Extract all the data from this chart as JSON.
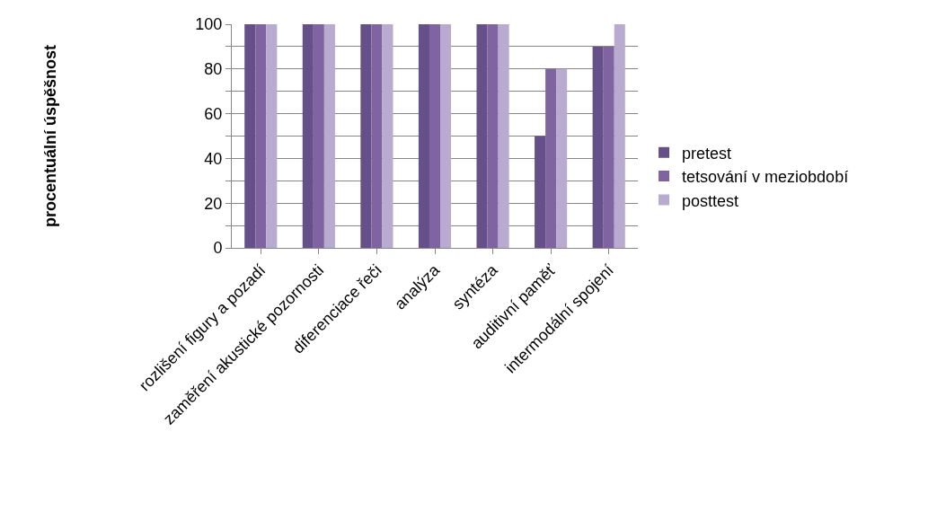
{
  "chart_data": {
    "type": "bar",
    "ylabel": "procentuální úspěšnost",
    "categories": [
      "rozlišení figury a pozadí",
      "zaměření akustické pozornosti",
      "diferenciace řeči",
      "analýza",
      "syntéza",
      "auditivní paměť",
      "intermodální spojení"
    ],
    "series": [
      {
        "name": "pretest",
        "color": "#65508a",
        "values": [
          100,
          100,
          100,
          100,
          100,
          50,
          90
        ]
      },
      {
        "name": "tetsování v meziobdobí",
        "color": "#8064a2",
        "values": [
          100,
          100,
          100,
          100,
          100,
          80,
          90
        ]
      },
      {
        "name": "posttest",
        "color": "#b9abcf",
        "values": [
          100,
          100,
          100,
          100,
          100,
          80,
          100
        ]
      }
    ],
    "ylim": [
      0,
      100
    ],
    "yticks": [
      0,
      {
        "value": 10,
        "label": null
      },
      20,
      {
        "value": 30,
        "label": null
      },
      40,
      {
        "value": 50,
        "label": null
      },
      60,
      {
        "value": 70,
        "label": null
      },
      80,
      {
        "value": 90,
        "label": null
      },
      100
    ],
    "grid": "y",
    "legend": "right"
  }
}
